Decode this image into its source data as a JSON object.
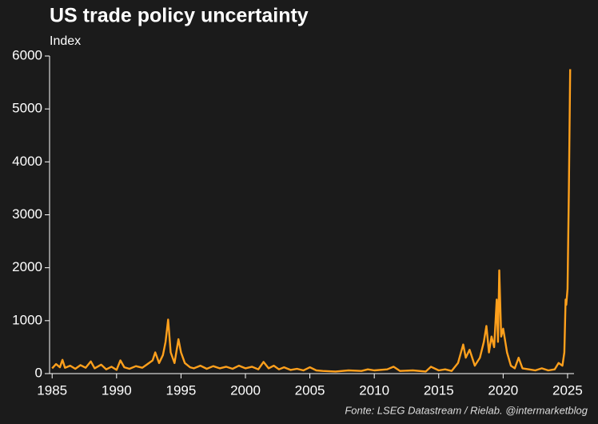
{
  "chart_data": {
    "type": "line",
    "title": "US trade policy uncertainty",
    "subtitle": "Index",
    "source": "Fonte: LSEG Datastream / Rielab. @intermarketblog",
    "series": [
      {
        "name": "US trade policy uncertainty",
        "color": "#ffa01c",
        "x": [
          1985.0,
          1985.3,
          1985.6,
          1985.8,
          1986.0,
          1986.4,
          1986.8,
          1987.2,
          1987.6,
          1988.0,
          1988.3,
          1988.8,
          1989.2,
          1989.6,
          1990.0,
          1990.3,
          1990.6,
          1991.0,
          1991.5,
          1992.0,
          1992.4,
          1992.8,
          1993.0,
          1993.3,
          1993.6,
          1993.8,
          1994.0,
          1994.2,
          1994.5,
          1994.8,
          1995.0,
          1995.3,
          1995.7,
          1996.0,
          1996.5,
          1997.0,
          1997.5,
          1998.0,
          1998.5,
          1999.0,
          1999.5,
          2000.0,
          2000.5,
          2001.0,
          2001.4,
          2001.8,
          2002.2,
          2002.6,
          2003.0,
          2003.5,
          2004.0,
          2004.5,
          2005.0,
          2005.5,
          2006.0,
          2007.0,
          2008.0,
          2009.0,
          2009.5,
          2010.0,
          2011.0,
          2011.5,
          2012.0,
          2013.0,
          2014.0,
          2014.4,
          2015.0,
          2015.5,
          2016.0,
          2016.5,
          2016.9,
          2017.1,
          2017.4,
          2017.8,
          2018.2,
          2018.5,
          2018.7,
          2018.9,
          2019.1,
          2019.3,
          2019.5,
          2019.6,
          2019.7,
          2019.85,
          2020.0,
          2020.3,
          2020.6,
          2020.9,
          2021.2,
          2021.5,
          2022.0,
          2022.5,
          2023.0,
          2023.5,
          2024.0,
          2024.3,
          2024.6,
          2024.75,
          2024.85,
          2024.9,
          2025.0,
          2025.1,
          2025.2
        ],
        "values": [
          100,
          180,
          120,
          260,
          110,
          150,
          90,
          160,
          110,
          230,
          100,
          170,
          80,
          130,
          70,
          250,
          120,
          90,
          140,
          110,
          180,
          250,
          400,
          200,
          350,
          600,
          1020,
          400,
          200,
          650,
          400,
          200,
          120,
          100,
          150,
          90,
          140,
          100,
          130,
          90,
          150,
          100,
          130,
          80,
          220,
          100,
          150,
          80,
          120,
          70,
          90,
          60,
          120,
          60,
          50,
          40,
          60,
          50,
          80,
          60,
          80,
          130,
          50,
          60,
          40,
          130,
          60,
          80,
          50,
          200,
          550,
          300,
          450,
          150,
          300,
          600,
          900,
          400,
          700,
          500,
          1400,
          600,
          1950,
          700,
          850,
          400,
          150,
          100,
          300,
          100,
          80,
          60,
          100,
          60,
          80,
          200,
          150,
          400,
          1400,
          1300,
          1600,
          3500,
          5750
        ]
      }
    ],
    "xlim": [
      1984.8,
      2025.5
    ],
    "xticks": [
      1985,
      1990,
      1995,
      2000,
      2005,
      2010,
      2015,
      2020,
      2025
    ],
    "ylim": [
      0,
      6000
    ],
    "yticks": [
      0,
      1000,
      2000,
      3000,
      4000,
      5000,
      6000
    ]
  }
}
